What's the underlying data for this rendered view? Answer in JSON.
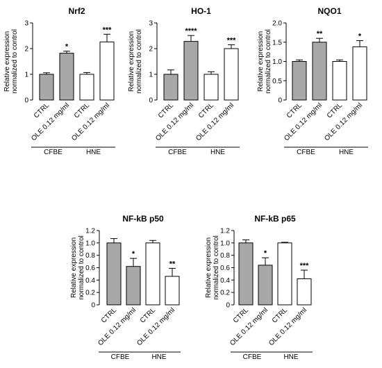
{
  "chart_data": [
    {
      "type": "bar",
      "title": "Nrf2",
      "ylabel": "Relative expression normalized to control",
      "ylabel_lines": [
        "Relative expression",
        "normalized to control"
      ],
      "categories": [
        "CTRL",
        "OLE 0.12 mg/ml",
        "CTRL",
        "OLE 0.12 mg/ml"
      ],
      "values": [
        1.0,
        1.82,
        1.0,
        2.26
      ],
      "errors": [
        0.06,
        0.08,
        0.07,
        0.3
      ],
      "significance": [
        "",
        "*",
        "",
        "***"
      ],
      "fill": [
        "gray",
        "gray",
        "white",
        "white"
      ],
      "groups": [
        {
          "label": "CFBE",
          "bars": [
            0,
            1
          ]
        },
        {
          "label": "HNE",
          "bars": [
            2,
            3
          ]
        }
      ],
      "ylim": [
        0,
        3
      ],
      "yticks": [
        "0",
        "1",
        "2",
        "3"
      ]
    },
    {
      "type": "bar",
      "title": "HO-1",
      "ylabel": "Relative expression normalized to control",
      "ylabel_lines": [
        "Relative expression",
        "normalized to control"
      ],
      "categories": [
        "CTRL",
        "OLE 0.12 mg/ml",
        "CTRL",
        "OLE 0.12 mg/ml"
      ],
      "values": [
        1.0,
        2.28,
        1.0,
        2.0
      ],
      "errors": [
        0.17,
        0.23,
        0.1,
        0.15
      ],
      "significance": [
        "",
        "****",
        "",
        "***"
      ],
      "fill": [
        "gray",
        "gray",
        "white",
        "white"
      ],
      "groups": [
        {
          "label": "CFBE",
          "bars": [
            0,
            1
          ]
        },
        {
          "label": "HNE",
          "bars": [
            2,
            3
          ]
        }
      ],
      "ylim": [
        0,
        3
      ],
      "yticks": [
        "0",
        "1",
        "2",
        "3"
      ]
    },
    {
      "type": "bar",
      "title": "NQO1",
      "ylabel": "Relative expression normalized to control",
      "ylabel_lines": [
        "Relative expression",
        "normalized to control"
      ],
      "categories": [
        "CTRL",
        "OLE 0.12 mg/ml",
        "CTRL",
        "OLE 0.12 mg/ml"
      ],
      "values": [
        1.0,
        1.5,
        1.0,
        1.38
      ],
      "errors": [
        0.04,
        0.1,
        0.04,
        0.16
      ],
      "significance": [
        "",
        "**",
        "",
        "*"
      ],
      "fill": [
        "gray",
        "gray",
        "white",
        "white"
      ],
      "groups": [
        {
          "label": "CFBE",
          "bars": [
            0,
            1
          ]
        },
        {
          "label": "HNE",
          "bars": [
            2,
            3
          ]
        }
      ],
      "ylim": [
        0,
        2
      ],
      "yticks": [
        "0",
        "0.5",
        "1.0",
        "1.5",
        "2.0"
      ]
    },
    {
      "type": "bar",
      "title": "NF-kB p50",
      "ylabel": "Relative expression normalized to control",
      "ylabel_lines": [
        "Relative expression",
        "normalized to control"
      ],
      "categories": [
        "CTRL",
        "OLE 0.12 mg/ml",
        "CTRL",
        "OLE 0.12 mg/ml"
      ],
      "values": [
        1.0,
        0.62,
        1.0,
        0.46
      ],
      "errors": [
        0.07,
        0.13,
        0.04,
        0.13
      ],
      "significance": [
        "",
        "*",
        "",
        "**"
      ],
      "fill": [
        "gray",
        "gray",
        "white",
        "white"
      ],
      "groups": [
        {
          "label": "CFBE",
          "bars": [
            0,
            1
          ]
        },
        {
          "label": "HNE",
          "bars": [
            2,
            3
          ]
        }
      ],
      "ylim": [
        0,
        1.2
      ],
      "yticks": [
        "0",
        "0.2",
        "0.4",
        "0.6",
        "0.8",
        "1.0",
        "1.2"
      ]
    },
    {
      "type": "bar",
      "title": "NF-kB p65",
      "ylabel": "Relative expression normalized to control",
      "ylabel_lines": [
        "Relative expression",
        "normalized to control"
      ],
      "categories": [
        "CTRL",
        "OLE 0.12 mg/ml",
        "CTRL",
        "OLE 0.12 mg/ml"
      ],
      "values": [
        1.0,
        0.64,
        1.0,
        0.42
      ],
      "errors": [
        0.05,
        0.12,
        0.01,
        0.14
      ],
      "significance": [
        "",
        "*",
        "",
        "***"
      ],
      "fill": [
        "gray",
        "gray",
        "white",
        "white"
      ],
      "groups": [
        {
          "label": "CFBE",
          "bars": [
            0,
            1
          ]
        },
        {
          "label": "HNE",
          "bars": [
            2,
            3
          ]
        }
      ],
      "ylim": [
        0,
        1.2
      ],
      "yticks": [
        "0",
        "0.2",
        "0.4",
        "0.6",
        "0.8",
        "1.0",
        "1.2"
      ]
    }
  ],
  "colors": {
    "gray_fill": "#a8a8a8",
    "white_fill": "#ffffff",
    "stroke": "#000000"
  }
}
